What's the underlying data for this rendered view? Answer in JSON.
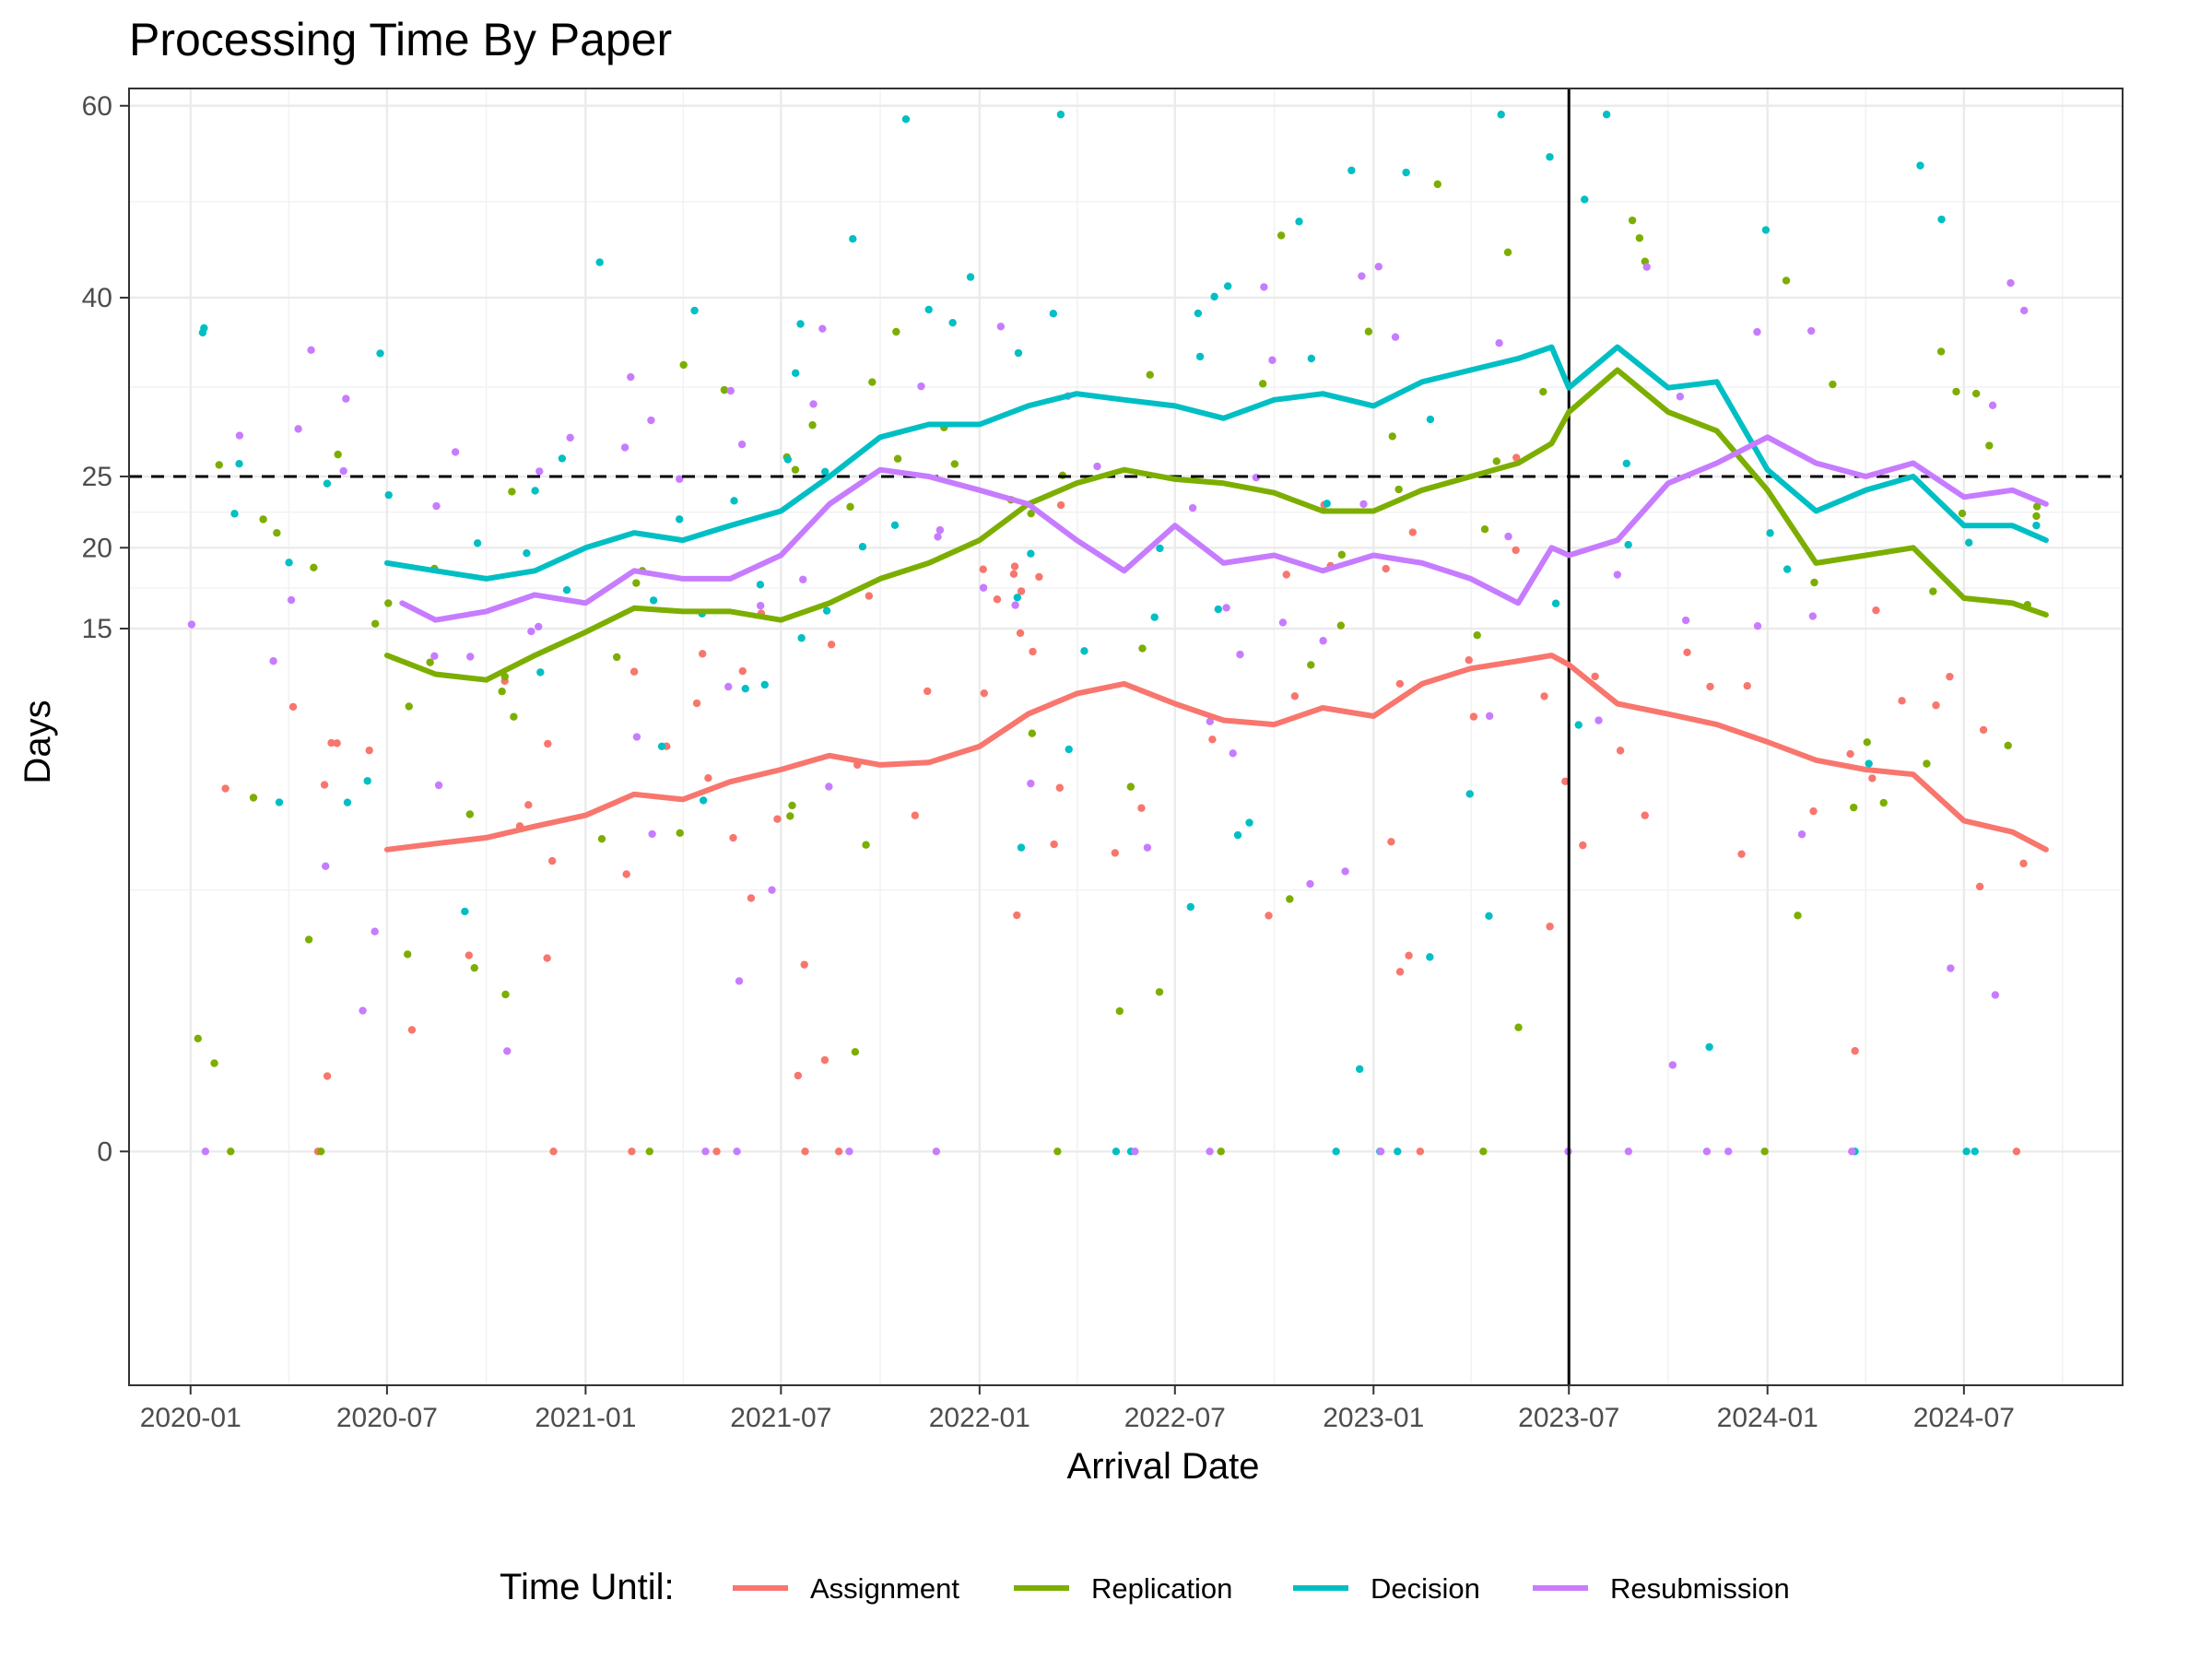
{
  "chart_data": {
    "type": "line",
    "title": "Processing Time By Paper",
    "xlabel": "Arrival Date",
    "ylabel": "Days",
    "x_axis_type": "date",
    "xlim": [
      "2019-11-05",
      "2024-11-25"
    ],
    "ylim": [
      -3,
      62
    ],
    "y_scale": "sqrt",
    "x_ticks": [
      "2020-01",
      "2020-07",
      "2021-01",
      "2021-07",
      "2022-01",
      "2022-07",
      "2023-01",
      "2023-07",
      "2024-01",
      "2024-07"
    ],
    "y_ticks": [
      0,
      15,
      20,
      25,
      40,
      60
    ],
    "grid": true,
    "legend": {
      "title": "Time Until:",
      "position": "bottom"
    },
    "reference_lines": [
      {
        "orientation": "horizontal",
        "y": 25,
        "style": "dashed",
        "color": "#000000"
      },
      {
        "orientation": "vertical",
        "x": "2023-07-01",
        "style": "solid",
        "color": "#000000"
      }
    ],
    "series": [
      {
        "name": "Assignment",
        "color": "#F8766D",
        "x": [
          "2020-07-01",
          "2020-08-15",
          "2020-10-01",
          "2020-11-15",
          "2021-01-01",
          "2021-02-15",
          "2021-04-01",
          "2021-05-15",
          "2021-07-01",
          "2021-08-15",
          "2021-10-01",
          "2021-11-15",
          "2022-01-01",
          "2022-02-15",
          "2022-04-01",
          "2022-05-15",
          "2022-07-01",
          "2022-08-15",
          "2022-10-01",
          "2022-11-15",
          "2023-01-01",
          "2023-02-15",
          "2023-04-01",
          "2023-05-15",
          "2023-06-15",
          "2023-07-01",
          "2023-08-15",
          "2023-10-01",
          "2023-11-15",
          "2024-01-01",
          "2024-02-15",
          "2024-04-01",
          "2024-05-15",
          "2024-07-01",
          "2024-08-15",
          "2024-09-15"
        ],
        "y": [
          5.0,
          5.2,
          5.4,
          5.8,
          6.2,
          7.0,
          6.8,
          7.5,
          8.0,
          8.6,
          8.2,
          8.3,
          9.0,
          10.5,
          11.5,
          12.0,
          11.0,
          10.2,
          10.0,
          10.8,
          10.4,
          12.0,
          12.8,
          13.2,
          13.5,
          13.0,
          11.0,
          10.5,
          10.0,
          9.2,
          8.4,
          8.0,
          7.8,
          6.0,
          5.6,
          5.0
        ]
      },
      {
        "name": "Replication",
        "color": "#7CAE00",
        "x": [
          "2020-07-01",
          "2020-08-15",
          "2020-10-01",
          "2020-11-15",
          "2021-01-01",
          "2021-02-15",
          "2021-04-01",
          "2021-05-15",
          "2021-07-01",
          "2021-08-15",
          "2021-10-01",
          "2021-11-15",
          "2022-01-01",
          "2022-02-15",
          "2022-04-01",
          "2022-05-15",
          "2022-07-01",
          "2022-08-15",
          "2022-10-01",
          "2022-11-15",
          "2023-01-01",
          "2023-02-15",
          "2023-04-01",
          "2023-05-15",
          "2023-06-15",
          "2023-07-01",
          "2023-08-15",
          "2023-10-01",
          "2023-11-15",
          "2024-01-01",
          "2024-02-15",
          "2024-04-01",
          "2024-05-15",
          "2024-07-01",
          "2024-08-15",
          "2024-09-15"
        ],
        "y": [
          13.5,
          12.5,
          12.2,
          13.5,
          14.8,
          16.2,
          16.0,
          16.0,
          15.5,
          16.5,
          18.0,
          19.0,
          20.5,
          23.0,
          24.5,
          25.5,
          24.8,
          24.5,
          23.8,
          22.5,
          22.5,
          24.0,
          25.0,
          26.0,
          27.5,
          30.0,
          33.5,
          30.0,
          28.5,
          24.0,
          19.0,
          19.5,
          20.0,
          16.8,
          16.5,
          15.8
        ]
      },
      {
        "name": "Decision",
        "color": "#00BFC4",
        "x": [
          "2020-07-01",
          "2020-08-15",
          "2020-10-01",
          "2020-11-15",
          "2021-01-01",
          "2021-02-15",
          "2021-04-01",
          "2021-05-15",
          "2021-07-01",
          "2021-08-15",
          "2021-10-01",
          "2021-11-15",
          "2022-01-01",
          "2022-02-15",
          "2022-04-01",
          "2022-05-15",
          "2022-07-01",
          "2022-08-15",
          "2022-10-01",
          "2022-11-15",
          "2023-01-01",
          "2023-02-15",
          "2023-04-01",
          "2023-05-15",
          "2023-06-15",
          "2023-07-01",
          "2023-08-15",
          "2023-10-01",
          "2023-11-15",
          "2024-01-01",
          "2024-02-15",
          "2024-04-01",
          "2024-05-15",
          "2024-07-01",
          "2024-08-15",
          "2024-09-15"
        ],
        "y": [
          19.0,
          18.5,
          18.0,
          18.5,
          20.0,
          21.0,
          20.5,
          21.5,
          22.5,
          25.0,
          28.0,
          29.0,
          29.0,
          30.5,
          31.5,
          31.0,
          30.5,
          29.5,
          31.0,
          31.5,
          30.5,
          32.5,
          33.5,
          34.5,
          35.5,
          32.0,
          35.5,
          32.0,
          32.5,
          25.5,
          22.5,
          24.0,
          25.0,
          21.5,
          21.5,
          20.5
        ]
      },
      {
        "name": "Resubmission",
        "color": "#C77CFF",
        "x": [
          "2020-07-15",
          "2020-08-15",
          "2020-10-01",
          "2020-11-15",
          "2021-01-01",
          "2021-02-15",
          "2021-04-01",
          "2021-05-15",
          "2021-07-01",
          "2021-08-15",
          "2021-10-01",
          "2021-11-15",
          "2022-01-01",
          "2022-02-15",
          "2022-04-01",
          "2022-05-15",
          "2022-07-01",
          "2022-08-15",
          "2022-10-01",
          "2022-11-15",
          "2023-01-01",
          "2023-02-15",
          "2023-04-01",
          "2023-05-15",
          "2023-06-15",
          "2023-07-01",
          "2023-08-15",
          "2023-10-01",
          "2023-11-15",
          "2024-01-01",
          "2024-02-15",
          "2024-04-01",
          "2024-05-15",
          "2024-07-01",
          "2024-08-15",
          "2024-09-15"
        ],
        "y": [
          16.5,
          15.5,
          16.0,
          17.0,
          16.5,
          18.5,
          18.0,
          18.0,
          19.5,
          23.0,
          25.5,
          25.0,
          24.0,
          23.0,
          20.5,
          18.5,
          21.5,
          19.0,
          19.5,
          18.5,
          19.5,
          19.0,
          18.0,
          16.5,
          20.0,
          19.5,
          20.5,
          24.5,
          26.0,
          28.0,
          26.0,
          25.0,
          26.0,
          23.5,
          24.0,
          23.0
        ]
      }
    ]
  }
}
